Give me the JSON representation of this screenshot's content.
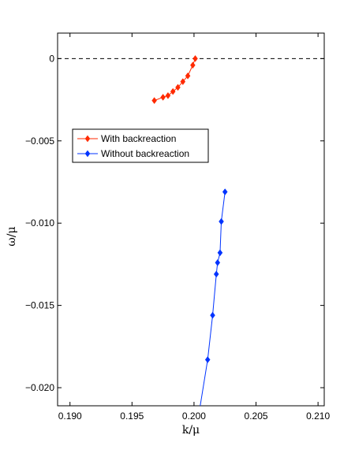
{
  "chart_data": {
    "type": "line",
    "title": "",
    "xlabel": "k/μ",
    "ylabel": "ω/μ",
    "xlim": [
      0.189,
      0.2105
    ],
    "ylim": [
      -0.0211,
      0.00155
    ],
    "xticks": [
      0.19,
      0.195,
      0.2,
      0.205,
      0.21
    ],
    "xtick_labels": [
      "0.190",
      "0.195",
      "0.200",
      "0.205",
      "0.210"
    ],
    "yticks": [
      0,
      -0.005,
      -0.01,
      -0.015,
      -0.02
    ],
    "ytick_labels": [
      "0",
      "−0.005",
      "−0.010",
      "−0.015",
      "−0.020"
    ],
    "reference_line": {
      "y": 0,
      "style": "dashed"
    },
    "grid": false,
    "legend_position": "upper-left",
    "series": [
      {
        "name": "With backreaction",
        "color": "#ff2a00",
        "marker": "diamond",
        "x": [
          0.1968,
          0.1975,
          0.1979,
          0.1983,
          0.1987,
          0.1991,
          0.1995,
          0.1999,
          0.2001
        ],
        "y": [
          -0.00255,
          -0.00235,
          -0.00225,
          -0.002,
          -0.00175,
          -0.0014,
          -0.00105,
          -0.0004,
          0.0
        ]
      },
      {
        "name": "Without backreaction",
        "color": "#0033ff",
        "marker": "diamond",
        "x": [
          0.2011,
          0.2015,
          0.2018,
          0.2019,
          0.2021,
          0.2022,
          0.2025
        ],
        "y": [
          -0.0183,
          -0.0156,
          -0.0131,
          -0.0124,
          -0.0118,
          -0.0099,
          -0.0081
        ],
        "line_to": [
          0.2005,
          -0.0211
        ]
      }
    ]
  }
}
